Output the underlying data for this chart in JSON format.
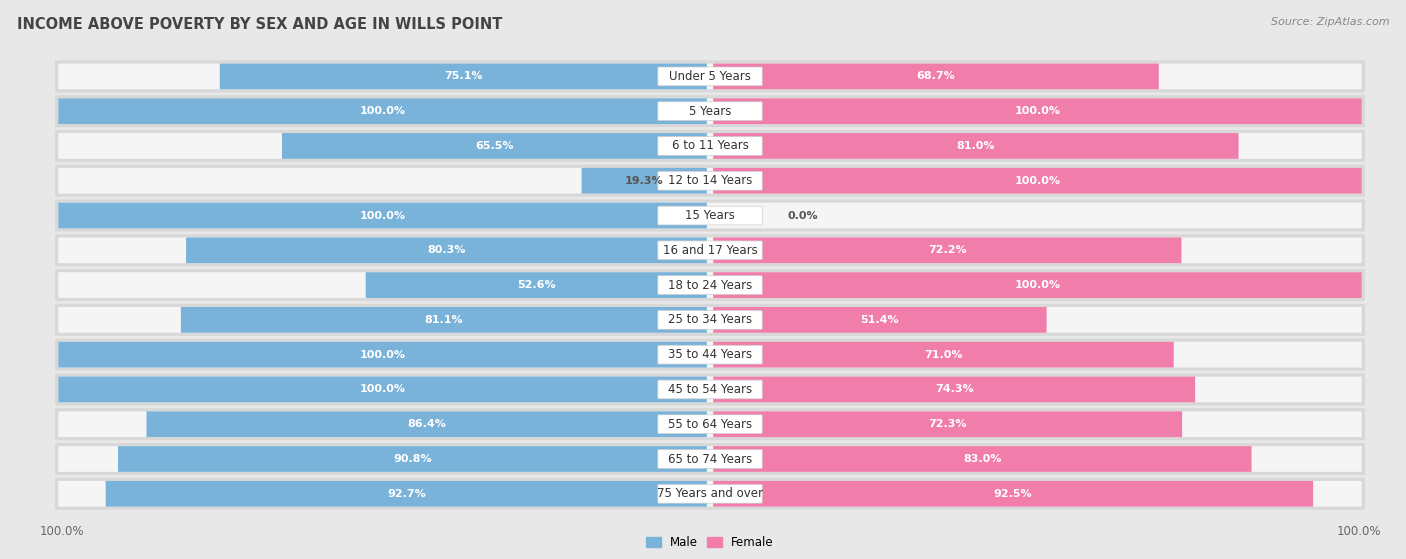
{
  "title": "INCOME ABOVE POVERTY BY SEX AND AGE IN WILLS POINT",
  "source": "Source: ZipAtlas.com",
  "categories": [
    "Under 5 Years",
    "5 Years",
    "6 to 11 Years",
    "12 to 14 Years",
    "15 Years",
    "16 and 17 Years",
    "18 to 24 Years",
    "25 to 34 Years",
    "35 to 44 Years",
    "45 to 54 Years",
    "55 to 64 Years",
    "65 to 74 Years",
    "75 Years and over"
  ],
  "male_values": [
    75.1,
    100.0,
    65.5,
    19.3,
    100.0,
    80.3,
    52.6,
    81.1,
    100.0,
    100.0,
    86.4,
    90.8,
    92.7
  ],
  "female_values": [
    68.7,
    100.0,
    81.0,
    100.0,
    0.0,
    72.2,
    100.0,
    51.4,
    71.0,
    74.3,
    72.3,
    83.0,
    92.5
  ],
  "male_color": "#7ab3d9",
  "female_color": "#f07daa",
  "male_label": "Male",
  "female_label": "Female",
  "bg_color": "#e8e8e8",
  "row_bg_color": "#d8d8d8",
  "bar_bg_color": "#f5f5f5",
  "max_val": 100.0,
  "title_fontsize": 10.5,
  "label_fontsize": 8.5,
  "value_fontsize": 8.0,
  "tick_fontsize": 8.5,
  "source_fontsize": 8
}
